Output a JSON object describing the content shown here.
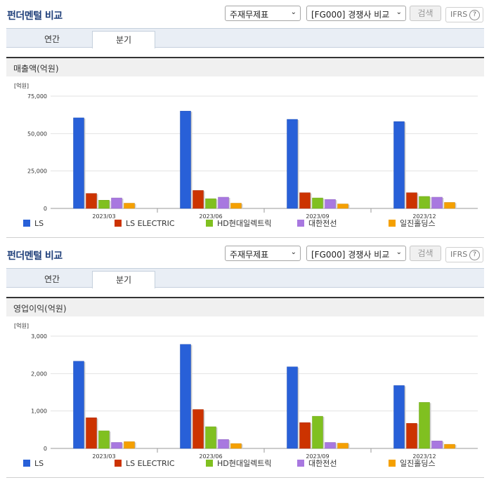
{
  "panels": [
    {
      "header": {
        "title": "펀더멘털 비교",
        "select_statement": "주재무제표",
        "select_compare": "[FG000] 경쟁사 비교",
        "search_label": "검색",
        "ifrs_label": "IFRS",
        "ifrs_help": "?"
      },
      "tabs": [
        "연간",
        "분기"
      ],
      "active_tab": "분기",
      "section_title": "매출액(억원)",
      "chart_data": {
        "type": "bar",
        "unit_label": "[억원]",
        "categories": [
          "2023/03",
          "2023/06",
          "2023/09",
          "2023/12"
        ],
        "ylim": [
          0,
          75000
        ],
        "yticks": [
          0,
          25000,
          50000,
          75000
        ],
        "ytick_labels": [
          "0",
          "25,000",
          "50,000",
          "75,000"
        ],
        "grid": true,
        "legend_position": "bottom",
        "series": [
          {
            "name": "LS",
            "color": "#2860d8",
            "values": [
              60500,
              65000,
              59500,
              58000
            ]
          },
          {
            "name": "LS ELECTRIC",
            "color": "#cc3300",
            "values": [
              10000,
              12000,
              10500,
              10500
            ]
          },
          {
            "name": "HD현대일렉트릭",
            "color": "#80c020",
            "values": [
              5500,
              6500,
              7000,
              8000
            ]
          },
          {
            "name": "대한전선",
            "color": "#a878e0",
            "values": [
              7000,
              7500,
              6000,
              7500
            ]
          },
          {
            "name": "일진홀딩스",
            "color": "#f5a000",
            "values": [
              3500,
              3500,
              3000,
              4000
            ]
          }
        ]
      }
    },
    {
      "header": {
        "title": "펀더멘털 비교",
        "select_statement": "주재무제표",
        "select_compare": "[FG000] 경쟁사 비교",
        "search_label": "검색",
        "ifrs_label": "IFRS",
        "ifrs_help": "?"
      },
      "tabs": [
        "연간",
        "분기"
      ],
      "active_tab": "분기",
      "section_title": "영업이익(억원)",
      "chart_data": {
        "type": "bar",
        "unit_label": "[억원]",
        "categories": [
          "2023/03",
          "2023/06",
          "2023/09",
          "2023/12"
        ],
        "ylim": [
          0,
          3000
        ],
        "yticks": [
          0,
          1000,
          2000,
          3000
        ],
        "ytick_labels": [
          "0",
          "1,000",
          "2,000",
          "3,000"
        ],
        "grid": true,
        "legend_position": "bottom",
        "series": [
          {
            "name": "LS",
            "color": "#2860d8",
            "values": [
              2330,
              2780,
              2180,
              1680
            ]
          },
          {
            "name": "LS ELECTRIC",
            "color": "#cc3300",
            "values": [
              820,
              1040,
              690,
              670
            ]
          },
          {
            "name": "HD현대일렉트릭",
            "color": "#80c020",
            "values": [
              470,
              580,
              860,
              1230
            ]
          },
          {
            "name": "대한전선",
            "color": "#a878e0",
            "values": [
              160,
              240,
              160,
              200
            ]
          },
          {
            "name": "일진홀딩스",
            "color": "#f5a000",
            "values": [
              180,
              130,
              140,
              110
            ]
          }
        ]
      }
    }
  ]
}
